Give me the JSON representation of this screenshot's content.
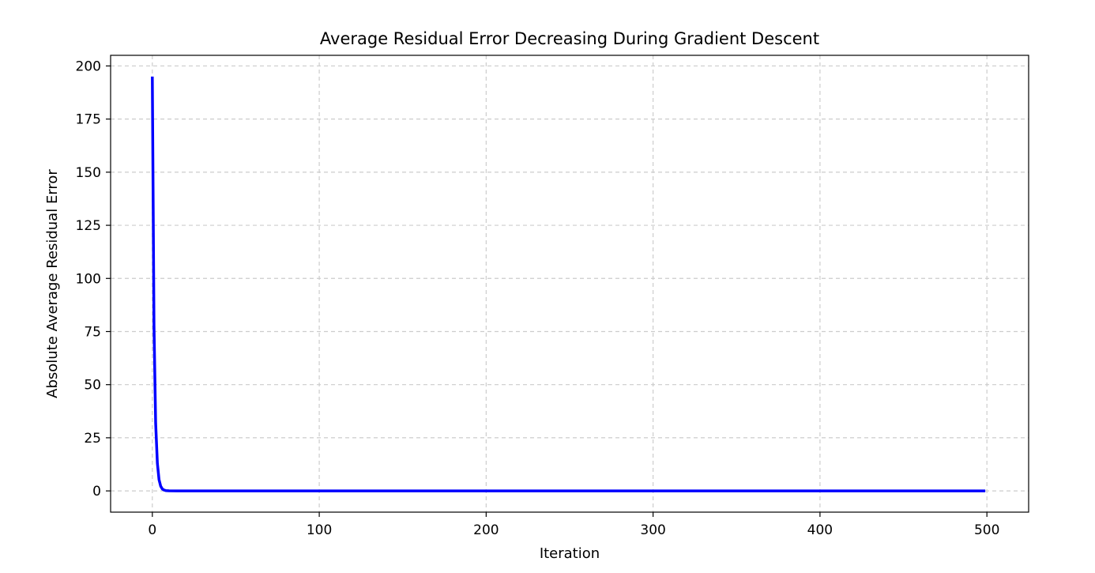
{
  "chart_data": {
    "type": "line",
    "title": "Average Residual Error Decreasing During Gradient Descent",
    "xlabel": "Iteration",
    "ylabel": "Absolute Average Residual Error",
    "xlim": [
      -25,
      525
    ],
    "ylim": [
      -10,
      205
    ],
    "xticks": [
      0,
      100,
      200,
      300,
      400,
      500
    ],
    "yticks": [
      0,
      25,
      50,
      75,
      100,
      125,
      150,
      175,
      200
    ],
    "grid": true,
    "legend": "none",
    "series": [
      {
        "color": "#0000ff",
        "x": [
          0,
          1,
          2,
          3,
          4,
          5,
          6,
          7,
          8,
          10,
          15,
          20,
          50,
          100,
          200,
          300,
          400,
          499
        ],
        "y": [
          195,
          78,
          32,
          13,
          5.3,
          2.2,
          0.9,
          0.4,
          0.15,
          0.03,
          0.01,
          0,
          0,
          0,
          0,
          0,
          0,
          0
        ]
      }
    ]
  }
}
